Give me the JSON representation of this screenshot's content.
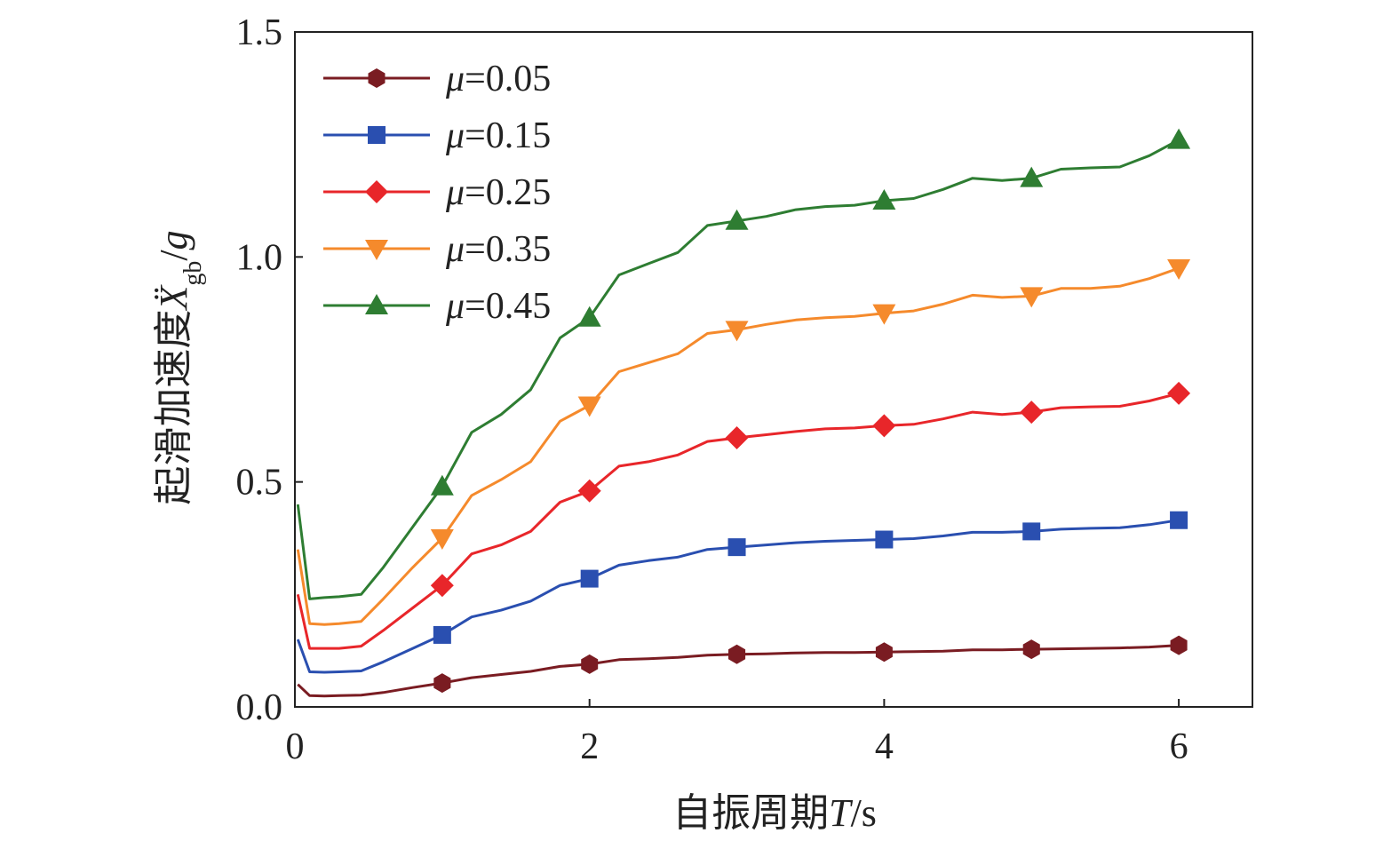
{
  "chart_data": {
    "type": "line",
    "xlabel": {
      "main": "自振周期",
      "var": "T",
      "unit": "/s"
    },
    "ylabel": {
      "main": "起滑加速度",
      "var": "Ẍ",
      "sub": "gb",
      "unit": "/",
      "unit_var": "g"
    },
    "xlim": [
      0,
      6.5
    ],
    "ylim": [
      0,
      1.5
    ],
    "x_ticks": [
      "0",
      "2",
      "4",
      "6"
    ],
    "y_ticks": [
      "0.0",
      "0.5",
      "1.0",
      "1.5"
    ],
    "grid": false,
    "legend_position": "top-left",
    "series": [
      {
        "name": "μ=0.05",
        "symbol": "μ",
        "value_label": "=0.05",
        "color": "#7a1c22",
        "marker": "hexagon",
        "marker_x": [
          1,
          2,
          3,
          4,
          5,
          6
        ],
        "points": [
          [
            0.02,
            0.05
          ],
          [
            0.1,
            0.025
          ],
          [
            0.2,
            0.024
          ],
          [
            0.3,
            0.025
          ],
          [
            0.45,
            0.026
          ],
          [
            0.6,
            0.032
          ],
          [
            0.8,
            0.043
          ],
          [
            1.0,
            0.053
          ],
          [
            1.2,
            0.065
          ],
          [
            1.4,
            0.072
          ],
          [
            1.6,
            0.079
          ],
          [
            1.8,
            0.09
          ],
          [
            2.0,
            0.095
          ],
          [
            2.2,
            0.105
          ],
          [
            2.4,
            0.107
          ],
          [
            2.6,
            0.11
          ],
          [
            2.8,
            0.115
          ],
          [
            3.0,
            0.117
          ],
          [
            3.2,
            0.118
          ],
          [
            3.4,
            0.12
          ],
          [
            3.6,
            0.121
          ],
          [
            3.8,
            0.121
          ],
          [
            4.0,
            0.122
          ],
          [
            4.2,
            0.123
          ],
          [
            4.4,
            0.124
          ],
          [
            4.6,
            0.127
          ],
          [
            4.8,
            0.127
          ],
          [
            5.0,
            0.128
          ],
          [
            5.2,
            0.129
          ],
          [
            5.4,
            0.13
          ],
          [
            5.6,
            0.131
          ],
          [
            5.8,
            0.133
          ],
          [
            6.0,
            0.137
          ]
        ]
      },
      {
        "name": "μ=0.15",
        "symbol": "μ",
        "value_label": "=0.15",
        "color": "#2a4fb0",
        "marker": "square",
        "marker_x": [
          1,
          2,
          3,
          4,
          5,
          6
        ],
        "points": [
          [
            0.02,
            0.15
          ],
          [
            0.1,
            0.078
          ],
          [
            0.2,
            0.077
          ],
          [
            0.3,
            0.078
          ],
          [
            0.45,
            0.08
          ],
          [
            0.6,
            0.1
          ],
          [
            0.8,
            0.13
          ],
          [
            1.0,
            0.16
          ],
          [
            1.2,
            0.2
          ],
          [
            1.4,
            0.215
          ],
          [
            1.6,
            0.235
          ],
          [
            1.8,
            0.27
          ],
          [
            2.0,
            0.285
          ],
          [
            2.2,
            0.315
          ],
          [
            2.4,
            0.325
          ],
          [
            2.6,
            0.333
          ],
          [
            2.8,
            0.35
          ],
          [
            3.0,
            0.355
          ],
          [
            3.2,
            0.36
          ],
          [
            3.4,
            0.365
          ],
          [
            3.6,
            0.368
          ],
          [
            3.8,
            0.37
          ],
          [
            4.0,
            0.372
          ],
          [
            4.2,
            0.374
          ],
          [
            4.4,
            0.38
          ],
          [
            4.6,
            0.388
          ],
          [
            4.8,
            0.388
          ],
          [
            5.0,
            0.39
          ],
          [
            5.2,
            0.395
          ],
          [
            5.4,
            0.397
          ],
          [
            5.6,
            0.398
          ],
          [
            5.8,
            0.405
          ],
          [
            6.0,
            0.415
          ]
        ]
      },
      {
        "name": "μ=0.25",
        "symbol": "μ",
        "value_label": "=0.25",
        "color": "#e8262a",
        "marker": "diamond",
        "marker_x": [
          1,
          2,
          3,
          4,
          5,
          6
        ],
        "points": [
          [
            0.02,
            0.25
          ],
          [
            0.1,
            0.13
          ],
          [
            0.2,
            0.13
          ],
          [
            0.3,
            0.13
          ],
          [
            0.45,
            0.135
          ],
          [
            0.6,
            0.17
          ],
          [
            0.8,
            0.22
          ],
          [
            1.0,
            0.27
          ],
          [
            1.2,
            0.34
          ],
          [
            1.4,
            0.36
          ],
          [
            1.6,
            0.39
          ],
          [
            1.8,
            0.455
          ],
          [
            2.0,
            0.48
          ],
          [
            2.2,
            0.535
          ],
          [
            2.4,
            0.545
          ],
          [
            2.6,
            0.56
          ],
          [
            2.8,
            0.59
          ],
          [
            3.0,
            0.598
          ],
          [
            3.2,
            0.605
          ],
          [
            3.4,
            0.612
          ],
          [
            3.6,
            0.618
          ],
          [
            3.8,
            0.62
          ],
          [
            4.0,
            0.625
          ],
          [
            4.2,
            0.628
          ],
          [
            4.4,
            0.64
          ],
          [
            4.6,
            0.655
          ],
          [
            4.8,
            0.65
          ],
          [
            5.0,
            0.655
          ],
          [
            5.2,
            0.665
          ],
          [
            5.4,
            0.667
          ],
          [
            5.6,
            0.668
          ],
          [
            5.8,
            0.68
          ],
          [
            6.0,
            0.697
          ]
        ]
      },
      {
        "name": "μ=0.35",
        "symbol": "μ",
        "value_label": "=0.35",
        "color": "#f58a2c",
        "marker": "triangle-down",
        "marker_x": [
          1,
          2,
          3,
          4,
          5,
          6
        ],
        "points": [
          [
            0.02,
            0.35
          ],
          [
            0.1,
            0.185
          ],
          [
            0.2,
            0.183
          ],
          [
            0.3,
            0.185
          ],
          [
            0.45,
            0.19
          ],
          [
            0.6,
            0.24
          ],
          [
            0.8,
            0.31
          ],
          [
            1.0,
            0.375
          ],
          [
            1.2,
            0.47
          ],
          [
            1.4,
            0.505
          ],
          [
            1.6,
            0.545
          ],
          [
            1.8,
            0.635
          ],
          [
            2.0,
            0.67
          ],
          [
            2.2,
            0.745
          ],
          [
            2.4,
            0.765
          ],
          [
            2.6,
            0.785
          ],
          [
            2.8,
            0.83
          ],
          [
            3.0,
            0.838
          ],
          [
            3.2,
            0.85
          ],
          [
            3.4,
            0.86
          ],
          [
            3.6,
            0.865
          ],
          [
            3.8,
            0.868
          ],
          [
            4.0,
            0.875
          ],
          [
            4.2,
            0.88
          ],
          [
            4.4,
            0.895
          ],
          [
            4.6,
            0.915
          ],
          [
            4.8,
            0.91
          ],
          [
            5.0,
            0.913
          ],
          [
            5.2,
            0.93
          ],
          [
            5.4,
            0.93
          ],
          [
            5.6,
            0.935
          ],
          [
            5.8,
            0.952
          ],
          [
            6.0,
            0.975
          ]
        ]
      },
      {
        "name": "μ=0.45",
        "symbol": "μ",
        "value_label": "=0.45",
        "color": "#2e7d32",
        "marker": "triangle-up",
        "marker_x": [
          1,
          2,
          3,
          4,
          5,
          6
        ],
        "points": [
          [
            0.02,
            0.45
          ],
          [
            0.1,
            0.24
          ],
          [
            0.2,
            0.243
          ],
          [
            0.3,
            0.245
          ],
          [
            0.45,
            0.25
          ],
          [
            0.6,
            0.31
          ],
          [
            0.8,
            0.4
          ],
          [
            1.0,
            0.49
          ],
          [
            1.2,
            0.61
          ],
          [
            1.4,
            0.65
          ],
          [
            1.6,
            0.705
          ],
          [
            1.8,
            0.82
          ],
          [
            2.0,
            0.865
          ],
          [
            2.2,
            0.96
          ],
          [
            2.4,
            0.985
          ],
          [
            2.6,
            1.01
          ],
          [
            2.8,
            1.07
          ],
          [
            3.0,
            1.08
          ],
          [
            3.2,
            1.09
          ],
          [
            3.4,
            1.105
          ],
          [
            3.6,
            1.112
          ],
          [
            3.8,
            1.115
          ],
          [
            4.0,
            1.125
          ],
          [
            4.2,
            1.13
          ],
          [
            4.4,
            1.15
          ],
          [
            4.6,
            1.175
          ],
          [
            4.8,
            1.17
          ],
          [
            5.0,
            1.175
          ],
          [
            5.2,
            1.195
          ],
          [
            5.4,
            1.198
          ],
          [
            5.6,
            1.2
          ],
          [
            5.8,
            1.225
          ],
          [
            6.0,
            1.26
          ]
        ]
      }
    ]
  }
}
